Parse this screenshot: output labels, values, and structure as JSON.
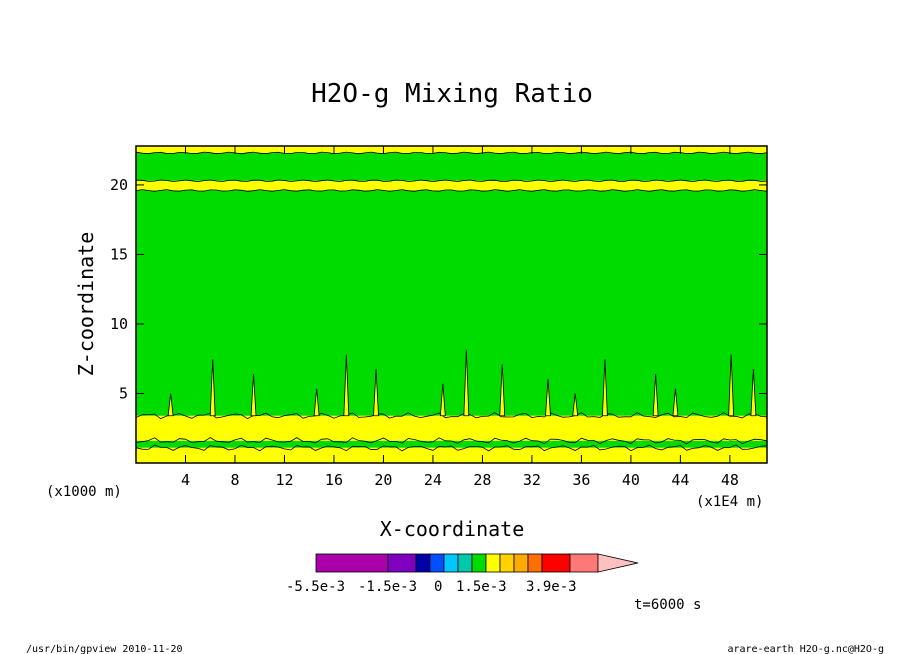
{
  "chart_data": {
    "type": "heatmap",
    "title": "H2O-g Mixing Ratio",
    "xlabel": "X-coordinate",
    "ylabel": "Z-coordinate",
    "x_unit": "(x1E4 m)",
    "y_unit": "(x1000 m)",
    "x_ticks": [
      4,
      8,
      12,
      16,
      20,
      24,
      28,
      32,
      36,
      40,
      44,
      48
    ],
    "y_ticks": [
      5,
      10,
      15,
      20
    ],
    "xlim": [
      0,
      51
    ],
    "ylim": [
      0,
      22.8
    ],
    "time_label": "t=6000 s",
    "colorbar": {
      "colors": [
        "#aa00aa",
        "#8000c0",
        "#0000a8",
        "#0050ff",
        "#00c8ff",
        "#00c8aa",
        "#00dc00",
        "#ffff00",
        "#ffd200",
        "#ffaa00",
        "#ff6e00",
        "#ff0000",
        "#ff7878",
        "#ffc0c0"
      ],
      "labels": [
        "-5.5e-3",
        "-1.5e-3",
        "0",
        "1.5e-3",
        "3.9e-3"
      ]
    },
    "bands": [
      {
        "z0": 0.0,
        "z1": 1.1,
        "level": "yellow"
      },
      {
        "z0": 1.1,
        "z1": 1.6,
        "level": "green"
      },
      {
        "z0": 1.6,
        "z1": 3.4,
        "level": "yellow"
      },
      {
        "z0": 3.4,
        "z1": 19.6,
        "level": "green"
      },
      {
        "z0": 19.6,
        "z1": 20.3,
        "level": "yellow"
      },
      {
        "z0": 20.3,
        "z1": 22.3,
        "level": "green"
      },
      {
        "z0": 22.3,
        "z1": 22.8,
        "level": "yellow"
      }
    ]
  },
  "footer": {
    "left": "/usr/bin/gpview  2010-11-20",
    "right": "arare-earth_H2O-g.nc@H2O-g"
  }
}
